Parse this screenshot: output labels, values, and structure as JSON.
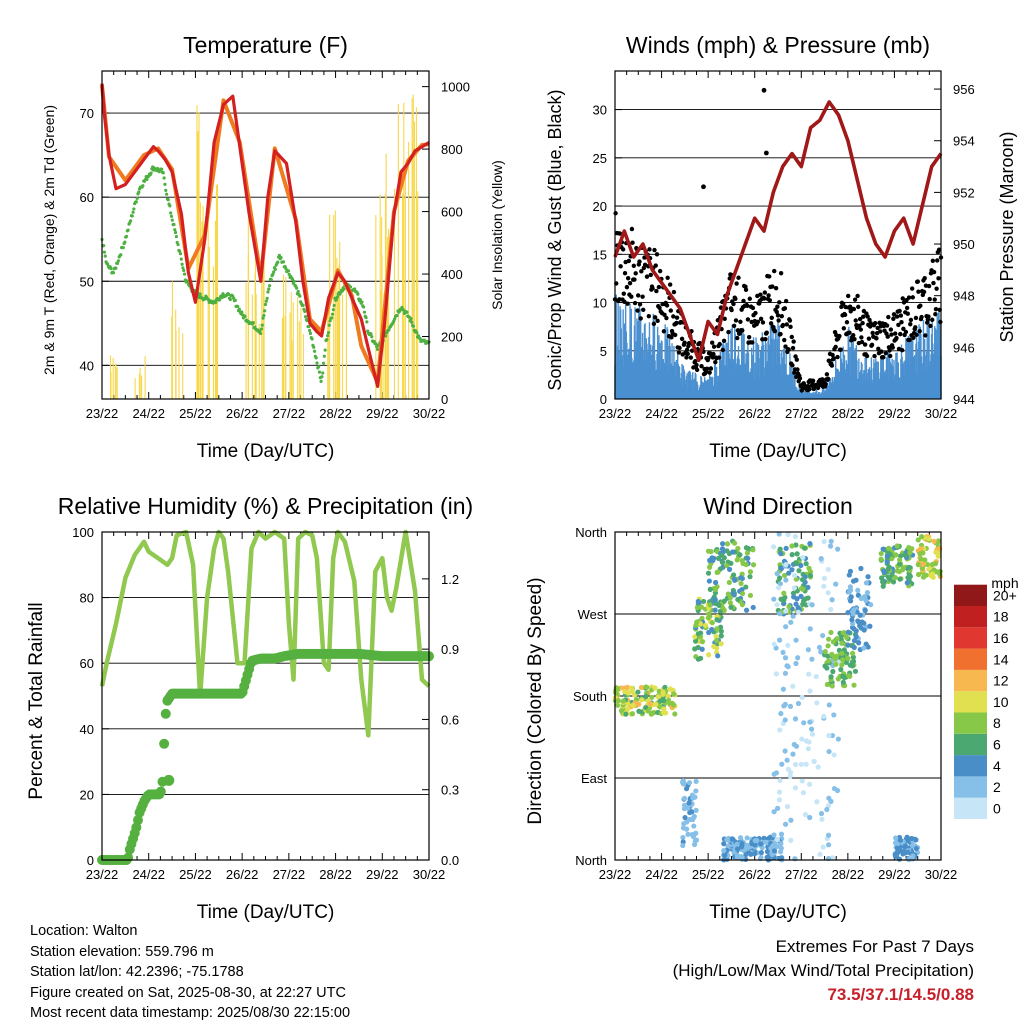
{
  "chart_data": [
    {
      "type": "line",
      "title": "Temperature (F)",
      "xlabel": "Time (Day/UTC)",
      "ylabel": "2m & 9m T (Red, Orange) & 2m Td (Green)",
      "y2label": "Solar Insolation (Yellow)",
      "x_ticks": [
        "23/22",
        "24/22",
        "25/22",
        "26/22",
        "27/22",
        "28/22",
        "29/22",
        "30/22"
      ],
      "ylim": [
        36,
        75
      ],
      "yticks": [
        40,
        50,
        60,
        70
      ],
      "y2lim": [
        0,
        1050
      ],
      "y2ticks": [
        0,
        200,
        400,
        600,
        800,
        1000
      ],
      "grid": "horizontal",
      "series": [
        {
          "name": "2m T",
          "color": "#d42020",
          "x": [
            0,
            0.05,
            0.15,
            0.3,
            0.5,
            0.7,
            0.9,
            1.1,
            1.2,
            1.35,
            1.5,
            1.7,
            1.85,
            2.0,
            2.2,
            2.4,
            2.6,
            2.8,
            2.95,
            3.15,
            3.4,
            3.55,
            3.7,
            3.95,
            4.15,
            4.3,
            4.45,
            4.6,
            4.7,
            4.85,
            5.05,
            5.2,
            5.35,
            5.55,
            5.7,
            5.9,
            6.05,
            6.25,
            6.4,
            6.55,
            6.7,
            6.85,
            7.0
          ],
          "y": [
            73.5,
            70,
            65,
            61,
            61.5,
            63,
            64.5,
            66,
            65.5,
            64.5,
            63,
            58,
            51,
            47.5,
            55,
            66.5,
            71,
            72,
            66,
            58,
            50,
            60,
            65.5,
            64,
            57,
            50,
            45,
            44,
            43.5,
            48,
            51,
            50,
            48,
            45.5,
            42,
            37.5,
            45,
            58,
            63,
            64,
            65.5,
            66,
            66.5
          ]
        },
        {
          "name": "9m T",
          "color": "#f07a20",
          "x": [
            0,
            0.15,
            0.5,
            0.9,
            1.2,
            1.5,
            1.85,
            2.2,
            2.6,
            2.95,
            3.4,
            3.7,
            4.15,
            4.45,
            4.7,
            5.05,
            5.35,
            5.55,
            5.9,
            6.25,
            6.55,
            6.85,
            7.0
          ],
          "y": [
            73.3,
            64.8,
            62,
            65,
            65.8,
            63.3,
            51.5,
            55.5,
            71.5,
            66.5,
            50.5,
            65.8,
            57.3,
            45.5,
            44,
            51.3,
            48.3,
            42.3,
            38,
            58.3,
            64.3,
            66.2,
            66.3
          ]
        },
        {
          "name": "2m Td",
          "color": "#4db040",
          "x": [
            0,
            0.1,
            0.25,
            0.5,
            0.8,
            1.1,
            1.3,
            1.4,
            1.6,
            1.8,
            2.0,
            2.2,
            2.4,
            2.6,
            2.8,
            3.0,
            3.2,
            3.4,
            3.6,
            3.8,
            3.9,
            4.1,
            4.3,
            4.5,
            4.7,
            4.8,
            5.0,
            5.2,
            5.4,
            5.6,
            5.7,
            5.9,
            6.1,
            6.3,
            6.4,
            6.6,
            6.8,
            7.0
          ],
          "y": [
            55,
            52,
            51,
            55,
            61,
            63.5,
            63,
            60,
            55,
            50,
            48.5,
            48,
            47.5,
            48.5,
            48,
            46,
            45,
            44,
            50,
            53,
            52,
            50,
            47,
            43,
            38,
            43,
            48,
            49.5,
            49,
            47,
            44,
            42,
            44,
            46,
            47,
            45.5,
            43,
            42.5
          ]
        },
        {
          "name": "Solar Insolation",
          "color": "#f7d84a",
          "axis": "y2",
          "peaks": [
            [
              0.3,
              150
            ],
            [
              0.8,
              140
            ],
            [
              1.6,
              380
            ],
            [
              2.15,
              980
            ],
            [
              2.4,
              850
            ],
            [
              3.15,
              640
            ],
            [
              3.35,
              520
            ],
            [
              4.0,
              400
            ],
            [
              4.2,
              350
            ],
            [
              4.95,
              650
            ],
            [
              5.15,
              700
            ],
            [
              6.0,
              680
            ],
            [
              6.2,
              840
            ],
            [
              6.45,
              1000
            ],
            [
              6.65,
              980
            ]
          ]
        }
      ]
    },
    {
      "type": "scatter",
      "title": "Winds (mph) & Pressure (mb)",
      "xlabel": "Time (Day/UTC)",
      "ylabel": "Sonic/Prop Wind & Gust (Blue, Black)",
      "y2label": "Station Pressure (Maroon)",
      "x_ticks": [
        "23/22",
        "24/22",
        "25/22",
        "26/22",
        "27/22",
        "28/22",
        "29/22",
        "30/22"
      ],
      "ylim": [
        0,
        34
      ],
      "yticks": [
        0,
        5,
        10,
        15,
        20,
        25,
        30
      ],
      "y2lim": [
        944,
        956.7
      ],
      "y2ticks": [
        944,
        946,
        948,
        950,
        952,
        954,
        956
      ],
      "grid": "horizontal",
      "series": [
        {
          "name": "Sonic/Prop Wind",
          "color": "#4a90d0",
          "envelope_x": [
            0,
            0.5,
            1.0,
            1.5,
            2.0,
            2.5,
            3.0,
            3.5,
            4.0,
            4.5,
            5.0,
            5.5,
            6.0,
            6.5,
            7.0
          ],
          "envelope_y": [
            10,
            9,
            8,
            3,
            2,
            8,
            6,
            8,
            1,
            1,
            7,
            4,
            5,
            7,
            9
          ]
        },
        {
          "name": "Gust",
          "color": "#000000",
          "envelope_x": [
            0,
            0.5,
            1.0,
            1.5,
            2.0,
            2.5,
            3.0,
            3.5,
            4.0,
            4.5,
            5.0,
            5.5,
            6.0,
            6.5,
            7.0
          ],
          "envelope_y": [
            17,
            15,
            13,
            7,
            4,
            12,
            9,
            13,
            1.5,
            2,
            11,
            7,
            8,
            11,
            14
          ],
          "outliers": [
            [
              3.2,
              32
            ],
            [
              3.25,
              25.5
            ],
            [
              1.9,
              22
            ]
          ]
        },
        {
          "name": "Station Pressure",
          "color": "#a01818",
          "axis": "y2",
          "x": [
            0,
            0.2,
            0.4,
            0.6,
            0.8,
            1.0,
            1.2,
            1.4,
            1.6,
            1.8,
            2.0,
            2.2,
            2.4,
            2.6,
            2.8,
            3.0,
            3.2,
            3.4,
            3.6,
            3.8,
            4.0,
            4.2,
            4.4,
            4.6,
            4.8,
            5.0,
            5.2,
            5.4,
            5.6,
            5.8,
            6.0,
            6.2,
            6.4,
            6.6,
            6.8,
            7.0
          ],
          "y": [
            949.5,
            950.5,
            949.5,
            950,
            949,
            948.5,
            948,
            947.5,
            946.5,
            945.5,
            947,
            946.5,
            948,
            949,
            950,
            951,
            950.5,
            952,
            953,
            953.5,
            953,
            954.5,
            954.8,
            955.5,
            955,
            954,
            952.5,
            951,
            950,
            949.5,
            950.5,
            951,
            950,
            951.5,
            953,
            953.5
          ]
        }
      ]
    },
    {
      "type": "line",
      "title": "Relative Humidity (%) & Precipitation (in)",
      "xlabel": "Time (Day/UTC)",
      "ylabel": "Percent & Total Rainfall",
      "x_ticks": [
        "23/22",
        "24/22",
        "25/22",
        "26/22",
        "27/22",
        "28/22",
        "29/22",
        "30/22"
      ],
      "ylim": [
        0,
        100
      ],
      "yticks": [
        0,
        20,
        40,
        60,
        80,
        100
      ],
      "y2lim": [
        0,
        1.4
      ],
      "y2ticks": [
        "0.0",
        "0.3",
        "0.6",
        "0.9",
        "1.2"
      ],
      "grid": "horizontal",
      "series": [
        {
          "name": "Relative Humidity",
          "color": "#90c850",
          "x": [
            0,
            0.1,
            0.3,
            0.5,
            0.7,
            0.9,
            1.0,
            1.2,
            1.4,
            1.5,
            1.6,
            1.8,
            1.95,
            2.1,
            2.25,
            2.4,
            2.5,
            2.6,
            2.7,
            2.9,
            3.05,
            3.2,
            3.35,
            3.5,
            3.7,
            3.9,
            4.0,
            4.1,
            4.2,
            4.35,
            4.5,
            4.6,
            4.75,
            4.85,
            4.95,
            5.05,
            5.2,
            5.4,
            5.55,
            5.7,
            5.85,
            6.0,
            6.1,
            6.2,
            6.3,
            6.5,
            6.7,
            6.85,
            7.0
          ],
          "y": [
            53,
            60,
            72,
            86,
            93,
            97,
            94,
            92,
            90,
            92,
            99,
            100,
            90,
            50,
            80,
            95,
            100,
            98,
            88,
            60,
            60,
            95,
            100,
            98,
            100,
            98,
            72,
            55,
            98,
            100,
            99,
            92,
            60,
            58,
            92,
            100,
            97,
            85,
            55,
            38,
            88,
            92,
            80,
            76,
            83,
            100,
            82,
            55,
            53
          ]
        },
        {
          "name": "Total Rainfall",
          "color": "#55b040",
          "axis": "y2",
          "x": [
            0,
            0.35,
            0.55,
            0.6,
            0.68,
            0.75,
            0.8,
            0.9,
            1.0,
            1.1,
            1.25,
            1.3,
            1.35,
            1.4,
            1.5,
            1.6,
            2.0,
            2.5,
            3.0,
            3.1,
            3.2,
            3.4,
            3.7,
            3.9,
            4.2,
            4.5,
            5.0,
            5.5,
            6.0,
            6.5,
            7.0
          ],
          "y": [
            0,
            0,
            0,
            0.05,
            0.1,
            0.15,
            0.2,
            0.25,
            0.28,
            0.28,
            0.28,
            0.34,
            0.6,
            0.68,
            0.71,
            0.71,
            0.71,
            0.71,
            0.71,
            0.78,
            0.85,
            0.86,
            0.86,
            0.87,
            0.88,
            0.88,
            0.88,
            0.88,
            0.87,
            0.87,
            0.87
          ]
        }
      ]
    },
    {
      "type": "scatter",
      "title": "Wind Direction",
      "xlabel": "Time (Day/UTC)",
      "ylabel": "Direction (Colored By Speed)",
      "x_ticks": [
        "23/22",
        "24/22",
        "25/22",
        "26/22",
        "27/22",
        "28/22",
        "29/22",
        "30/22"
      ],
      "y_categories": [
        "North",
        "East",
        "South",
        "West",
        "North"
      ],
      "ylim": [
        0,
        360
      ],
      "legend_title": "mph",
      "legend_labels": [
        "0",
        "2",
        "4",
        "6",
        "8",
        "10",
        "12",
        "14",
        "16",
        "18",
        "20+"
      ],
      "legend_colors": [
        "#c6e6f7",
        "#86c0e8",
        "#4a8ec8",
        "#4aa870",
        "#88c848",
        "#e0e050",
        "#f7b850",
        "#f07030",
        "#e03830",
        "#c02020",
        "#901818"
      ],
      "legend_position": "right",
      "clusters": [
        {
          "x": [
            0,
            1.3
          ],
          "dir": [
            160,
            190
          ],
          "speed": [
            6,
            12
          ]
        },
        {
          "x": [
            1.45,
            1.75
          ],
          "dir": [
            10,
            90
          ],
          "speed": [
            1,
            4
          ]
        },
        {
          "x": [
            1.7,
            2.3
          ],
          "dir": [
            220,
            290
          ],
          "speed": [
            4,
            10
          ]
        },
        {
          "x": [
            2.0,
            3.0
          ],
          "dir": [
            270,
            350
          ],
          "speed": [
            3,
            9
          ]
        },
        {
          "x": [
            2.3,
            3.6
          ],
          "dir": [
            0,
            25
          ],
          "speed": [
            1,
            5
          ]
        },
        {
          "x": [
            3.5,
            4.2
          ],
          "dir": [
            270,
            350
          ],
          "speed": [
            3,
            8
          ]
        },
        {
          "x": [
            3.4,
            4.8
          ],
          "dir": [
            0,
            360
          ],
          "speed": [
            0,
            2
          ]
        },
        {
          "x": [
            4.5,
            5.2
          ],
          "dir": [
            190,
            250
          ],
          "speed": [
            5,
            9
          ]
        },
        {
          "x": [
            5.0,
            5.5
          ],
          "dir": [
            230,
            320
          ],
          "speed": [
            2,
            5
          ]
        },
        {
          "x": [
            5.7,
            6.4
          ],
          "dir": [
            300,
            345
          ],
          "speed": [
            4,
            9
          ]
        },
        {
          "x": [
            6.0,
            6.5
          ],
          "dir": [
            0,
            25
          ],
          "speed": [
            2,
            5
          ]
        },
        {
          "x": [
            6.5,
            7.0
          ],
          "dir": [
            310,
            355
          ],
          "speed": [
            7,
            12
          ]
        }
      ]
    }
  ],
  "info": {
    "location": "Location: Walton",
    "elevation": "Station elevation: 559.796 m",
    "latlon": "Station lat/lon: 42.2396; -75.1788",
    "created": "Figure created on Sat, 2025-08-30, at 22:27 UTC",
    "recent": "Most recent data timestamp: 2025/08/30 22:15:00"
  },
  "extremes": {
    "title": "Extremes For Past 7 Days",
    "subtitle": "(High/Low/Max Wind/Total Precipitation)",
    "values": "73.5/37.1/14.5/0.88"
  }
}
